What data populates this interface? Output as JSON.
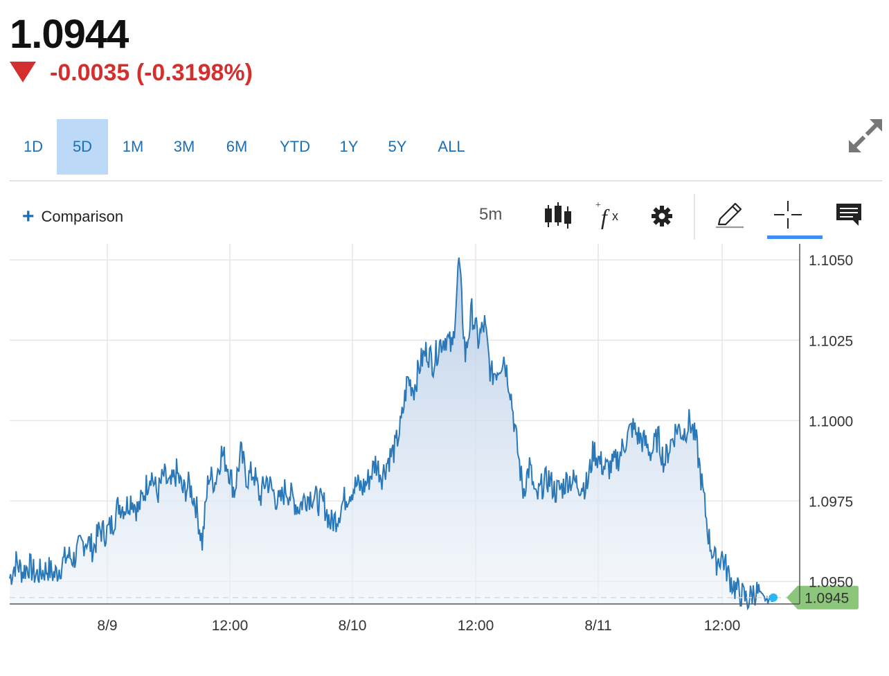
{
  "quote": {
    "price": "1.0944",
    "change": "-0.0035 (-0.3198%)",
    "direction": "down",
    "down_color": "#d32f2f"
  },
  "ranges": [
    {
      "label": "1D",
      "active": false
    },
    {
      "label": "5D",
      "active": true
    },
    {
      "label": "1M",
      "active": false
    },
    {
      "label": "3M",
      "active": false
    },
    {
      "label": "6M",
      "active": false
    },
    {
      "label": "YTD",
      "active": false
    },
    {
      "label": "1Y",
      "active": false
    },
    {
      "label": "5Y",
      "active": false
    },
    {
      "label": "ALL",
      "active": false
    }
  ],
  "toolbar": {
    "comparison_label": "Comparison",
    "interval_label": "5m",
    "icons": [
      "expand-icon",
      "candlestick-icon",
      "fx-icon",
      "gear-icon",
      "pencil-icon",
      "crosshair-icon",
      "comment-icon"
    ],
    "active_tool": "crosshair-icon"
  },
  "colors": {
    "line": "#2a78b8",
    "accent": "#1a6fb5",
    "price_tag": "#8cc67b",
    "last_dot": "#29b6f6"
  },
  "chart_data": {
    "type": "area",
    "x_tick_labels": [
      "8/9",
      "12:00",
      "8/10",
      "12:00",
      "8/11",
      "12:00"
    ],
    "y_tick_labels": [
      "1.1050",
      "1.1025",
      "1.1000",
      "1.0975",
      "1.0950"
    ],
    "ylim": [
      1.0943,
      1.1055
    ],
    "grid": true,
    "last_value_label": "1.0945",
    "y_axis_position": "right",
    "series": [
      {
        "values": [
          1.0951,
          1.0956,
          1.0953,
          1.0955,
          1.0952,
          1.0953,
          1.0954,
          1.0952,
          1.0955,
          1.0958,
          1.0957,
          1.0961,
          1.0963,
          1.096,
          1.0966,
          1.0965,
          1.0968,
          1.0974,
          1.0973,
          1.0976,
          1.0972,
          1.0978,
          1.0984,
          1.0977,
          1.0983,
          1.0979,
          1.0984,
          1.0978,
          1.098,
          1.0974,
          1.0962,
          1.0983,
          1.0981,
          1.099,
          1.0986,
          1.0978,
          1.099,
          1.0982,
          1.0984,
          1.0976,
          1.0982,
          1.0978,
          1.0974,
          1.0979,
          1.0976,
          1.0973,
          1.0976,
          1.0977,
          1.0975,
          1.0974,
          1.0968,
          1.097,
          1.0975,
          1.0978,
          1.098,
          1.0979,
          1.0982,
          1.0987,
          1.0983,
          1.0988,
          1.0991,
          1.0999,
          1.1013,
          1.101,
          1.1018,
          1.1022,
          1.1018,
          1.1024,
          1.1026,
          1.1022,
          1.105,
          1.102,
          1.1034,
          1.1025,
          1.103,
          1.1014,
          1.1016,
          1.102,
          1.101,
          1.0993,
          1.0978,
          1.0986,
          1.0975,
          1.098,
          1.0982,
          1.0978,
          1.0979,
          1.0982,
          1.0981,
          1.098,
          1.098,
          1.0991,
          1.0987,
          1.0985,
          1.0986,
          1.0989,
          1.0994,
          1.0998,
          1.0995,
          1.0993,
          1.099,
          1.0995,
          1.0987,
          1.0993,
          1.0998,
          1.0996,
          1.1,
          1.0993,
          1.0978,
          1.0963,
          1.0956,
          1.0958,
          1.0952,
          1.0948,
          1.0946,
          1.0944,
          1.0947,
          1.0946,
          1.0944,
          1.0945
        ],
        "fill": "gradient"
      }
    ]
  }
}
